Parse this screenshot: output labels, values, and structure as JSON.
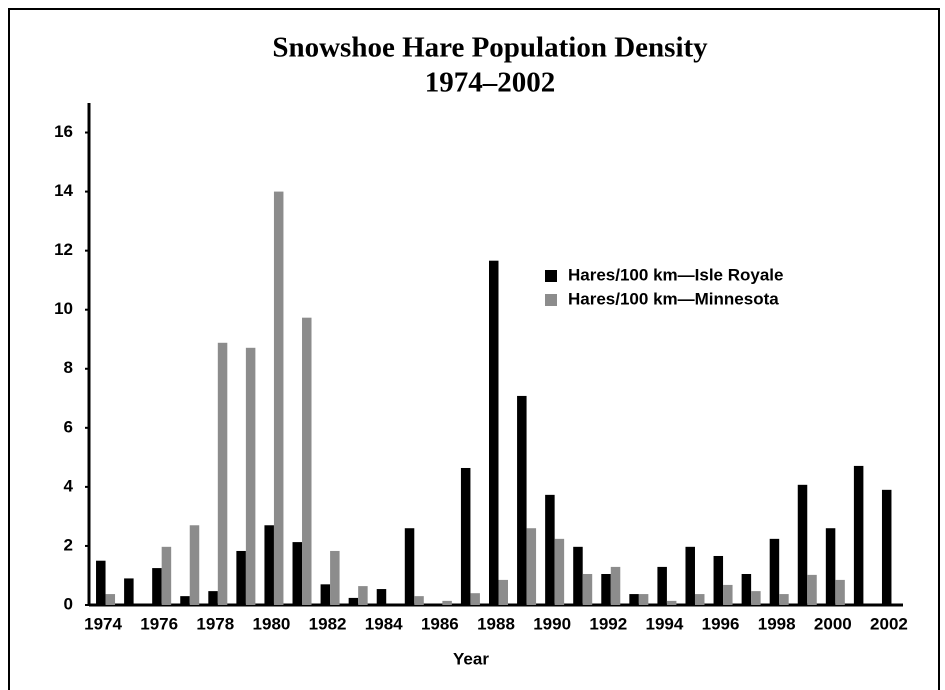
{
  "chart_data": {
    "type": "bar",
    "title": "Snowshoe Hare Population Density",
    "subtitle": "1974–2002",
    "x_label": "Year",
    "categories": [
      "1974",
      null,
      "1976",
      null,
      "1978",
      null,
      "1980",
      null,
      "1982",
      null,
      "1984",
      null,
      "1986",
      null,
      "1988",
      null,
      "1990",
      null,
      "1992",
      null,
      "1994",
      null,
      "1996",
      null,
      "1998",
      null,
      "2000",
      null,
      "2002"
    ],
    "series": [
      {
        "name": "Hares/100 km—Isle Royale",
        "color": "#000000",
        "values": [
          1.5,
          0.9,
          1.25,
          0.3,
          0.47,
          1.83,
          2.7,
          2.13,
          0.7,
          0.24,
          0.54,
          2.6,
          0,
          4.64,
          11.66,
          7.08,
          3.73,
          1.97,
          1.05,
          0.37,
          1.29,
          1.97,
          1.66,
          1.05,
          2.24,
          4.07,
          2.6,
          4.71,
          3.9
        ]
      },
      {
        "name": "Hares/100 km—Minnesota",
        "color": "#8c8c8c",
        "values": [
          0.37,
          0,
          1.97,
          2.7,
          8.88,
          8.71,
          14.0,
          9.73,
          1.83,
          0.64,
          0,
          0.3,
          0.14,
          0.4,
          0.85,
          2.6,
          2.24,
          1.05,
          1.29,
          0.37,
          0.14,
          0.37,
          0.68,
          0.47,
          0.37,
          1.02,
          0.85,
          0,
          0
        ]
      }
    ],
    "ylim": [
      0,
      17
    ],
    "yticks": [
      0,
      2,
      4,
      6,
      8,
      10,
      12,
      14,
      16
    ],
    "grid": false,
    "legend": "upper right"
  }
}
